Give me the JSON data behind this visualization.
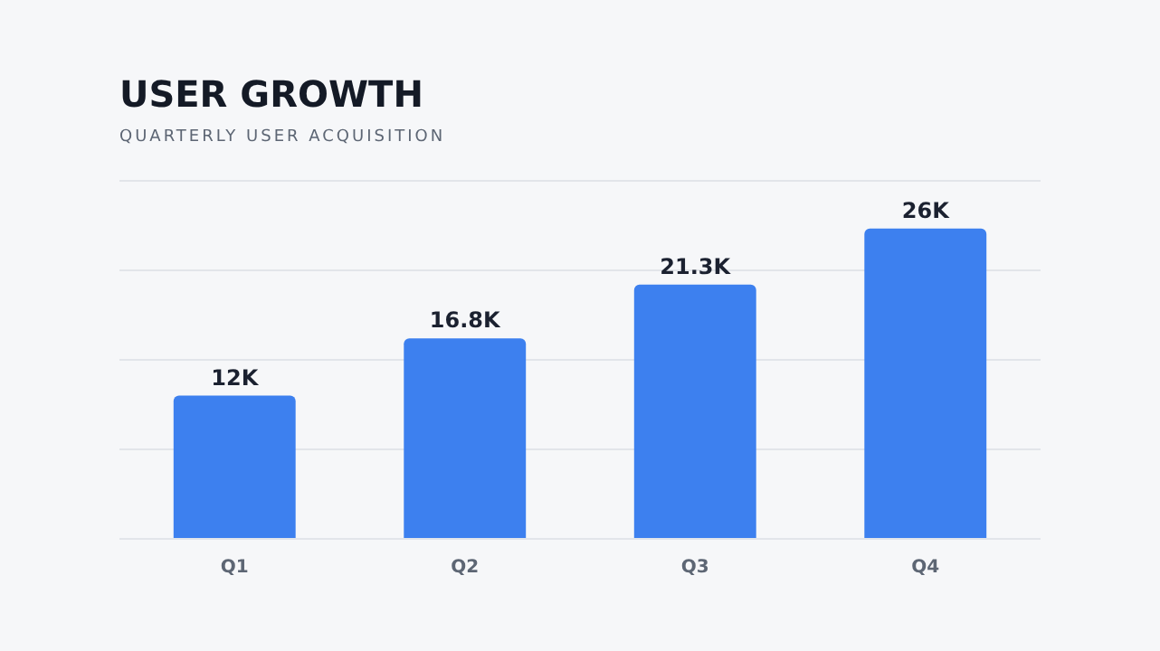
{
  "chart_data": {
    "type": "bar",
    "title": "USER GROWTH",
    "subtitle": "QUARTERLY USER ACQUISITION",
    "categories": [
      "Q1",
      "Q2",
      "Q3",
      "Q4"
    ],
    "values": [
      12,
      16.8,
      21.3,
      26
    ],
    "value_labels": [
      "12K",
      "16.8K",
      "21.3K",
      "26K"
    ],
    "color": "#3d80ef",
    "ylim": [
      0,
      30
    ],
    "yticks": [
      {
        "value": 0,
        "label": null
      },
      {
        "value": 7.5,
        "label": null
      },
      {
        "value": 15,
        "label": null
      },
      {
        "value": 22.5,
        "label": null
      },
      {
        "value": 30,
        "label": null
      }
    ],
    "tick_labels": "x",
    "grid": "y",
    "legend": false
  }
}
